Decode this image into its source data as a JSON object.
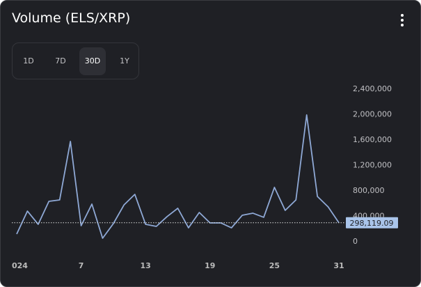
{
  "header": {
    "title": "Volume (ELS/XRP)"
  },
  "tabs": {
    "items": [
      "1D",
      "7D",
      "30D",
      "1Y"
    ],
    "selected": 2
  },
  "chart_data": {
    "type": "line",
    "categories": [
      "024",
      null,
      null,
      null,
      null,
      null,
      "7",
      null,
      null,
      null,
      null,
      null,
      "13",
      null,
      null,
      null,
      null,
      null,
      "19",
      null,
      null,
      null,
      null,
      null,
      "25",
      null,
      null,
      null,
      null,
      null,
      "31"
    ],
    "series": [
      {
        "color": "#8fa9d6",
        "values": [
          120000,
          482000,
          274000,
          636000,
          658000,
          1578000,
          252000,
          592000,
          55000,
          285000,
          581000,
          745000,
          274000,
          241000,
          395000,
          526000,
          219000,
          460000,
          296000,
          296000,
          219000,
          416000,
          449000,
          384000,
          855000,
          493000,
          658000,
          1995000,
          712000,
          548000,
          298119.09
        ],
        "value_labels": [
          null,
          null,
          null,
          null,
          null,
          null,
          null,
          null,
          null,
          null,
          null,
          null,
          null,
          null,
          null,
          null,
          null,
          null,
          null,
          null,
          null,
          null,
          null,
          null,
          null,
          null,
          null,
          null,
          null,
          null,
          "298,119.09"
        ]
      }
    ],
    "ylim": [
      0,
      2400000
    ],
    "yticks": [
      0,
      {
        "value": 400000,
        "label": "400,000"
      },
      {
        "value": 800000,
        "label": "800,000"
      },
      {
        "value": 1200000,
        "label": "1,200,000"
      },
      {
        "value": 1600000,
        "label": "1,600,000"
      },
      {
        "value": 2000000,
        "label": "2,000,000"
      },
      {
        "value": 2400000,
        "label": "2,400,000"
      }
    ],
    "grid": false
  }
}
